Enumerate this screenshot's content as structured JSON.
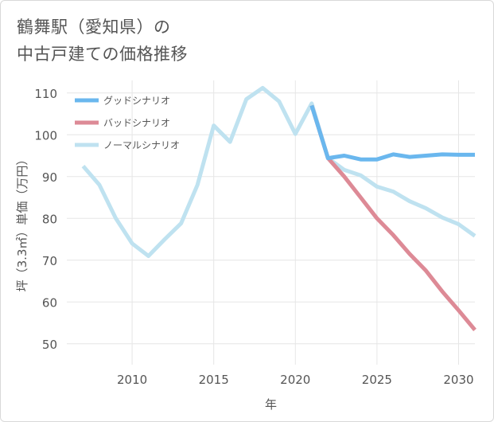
{
  "title": {
    "line1": "鶴舞駅（愛知県）の",
    "line2": "中古戸建ての価格推移"
  },
  "chart_data": {
    "type": "line",
    "xlabel": "年",
    "ylabel": "坪（3.3㎡）単価（万円）",
    "xlim": [
      2006,
      2031
    ],
    "ylim": [
      45,
      113
    ],
    "x_ticks": [
      "2010",
      "2015",
      "2020",
      "2025",
      "2030"
    ],
    "y_ticks": [
      "50",
      "60",
      "70",
      "80",
      "90",
      "100",
      "110"
    ],
    "legend_position": "top-left",
    "series": [
      {
        "name": "グッドシナリオ",
        "color": "#6ab7ee",
        "x": [
          2021,
          2022,
          2023,
          2024,
          2025,
          2026,
          2027,
          2028,
          2029,
          2030,
          2031
        ],
        "values": [
          107,
          94.4,
          95.0,
          94.1,
          94.1,
          95.3,
          94.7,
          95.0,
          95.3,
          95.2,
          95.2
        ]
      },
      {
        "name": "バッドシナリオ",
        "color": "#dd8a96",
        "x": [
          2021,
          2022,
          2023,
          2024,
          2025,
          2026,
          2027,
          2028,
          2029,
          2030,
          2031
        ],
        "values": [
          107,
          94.4,
          90.0,
          85.0,
          80.0,
          76.0,
          71.5,
          67.5,
          62.5,
          58.0,
          53.3
        ]
      },
      {
        "name": "ノーマルシナリオ",
        "color": "#bfe2f0",
        "x": [
          2007,
          2008,
          2009,
          2010,
          2011,
          2012,
          2013,
          2014,
          2015,
          2016,
          2017,
          2018,
          2019,
          2020,
          2021,
          2022,
          2023,
          2024,
          2025,
          2026,
          2027,
          2028,
          2029,
          2030,
          2031
        ],
        "values": [
          92.5,
          88,
          80,
          74,
          71,
          75,
          78.8,
          88,
          102.2,
          98.3,
          108.5,
          111.2,
          108,
          100.2,
          107.5,
          94.4,
          91.6,
          90.3,
          87.6,
          86.4,
          84.1,
          82.4,
          80.2,
          78.6,
          75.8
        ]
      }
    ]
  }
}
